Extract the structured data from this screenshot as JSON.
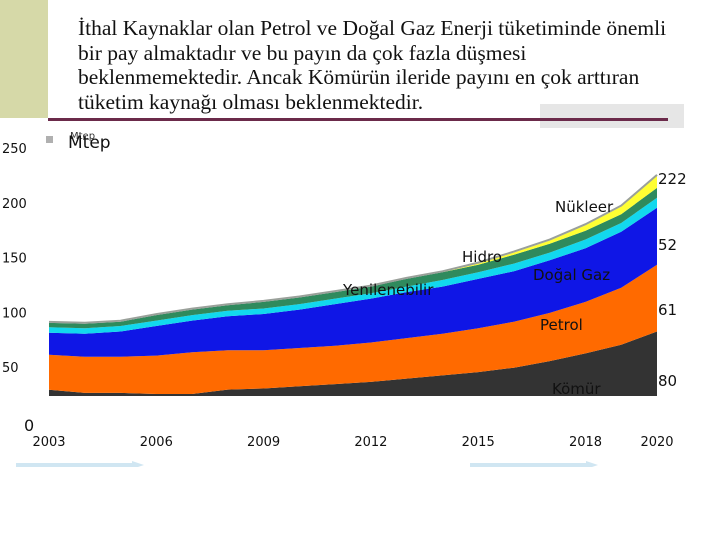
{
  "slide": {
    "title": "İthal Kaynaklar olan Petrol ve Doğal Gaz Enerji tüketiminde önemli bir pay almaktadır ve bu payın da çok fazla düşmesi beklenmemektedir. Ancak Kömürün ileride payını en çok arttıran tüketim kaynağı olması beklenmektedir.",
    "unit_small": "Mtep",
    "unit": "Mtep"
  },
  "colors": {
    "komur": "#333333",
    "petrol": "#ff6a00",
    "dogalgaz": "#0f16e6",
    "yenilenebilir": "#12d8ee",
    "hidro": "#2f8a5d",
    "nukleer": "#ffff33",
    "top_line": "#9aa09a"
  },
  "chart_data": {
    "type": "area",
    "stacked": true,
    "x": [
      2003,
      2004,
      2005,
      2006,
      2007,
      2008,
      2009,
      2010,
      2011,
      2012,
      2013,
      2014,
      2015,
      2016,
      2017,
      2018,
      2019,
      2020
    ],
    "x_ticks": [
      "2003",
      "2006",
      "2009",
      "2012",
      "2015",
      "2018",
      "2020"
    ],
    "y_ticks": [
      "0",
      "50",
      "100",
      "150",
      "200",
      "250"
    ],
    "ylim": [
      0,
      250
    ],
    "xlim": [
      2003,
      2020
    ],
    "grid": false,
    "series": [
      {
        "name": "Kömür",
        "color": "#333333",
        "values": [
          23,
          24,
          24,
          23,
          23,
          27,
          28,
          30,
          32,
          34,
          37,
          40,
          43,
          47,
          53,
          60,
          68,
          80
        ]
      },
      {
        "name": "Petrol",
        "color": "#ff6a00",
        "values": [
          32,
          33,
          33,
          35,
          38,
          36,
          35,
          35,
          35,
          36,
          37,
          38,
          40,
          42,
          44,
          47,
          52,
          61
        ]
      },
      {
        "name": "Doğal Gaz",
        "color": "#0f16e6",
        "values": [
          20,
          21,
          23,
          27,
          29,
          31,
          33,
          35,
          38,
          40,
          42,
          43,
          45,
          46,
          48,
          49,
          51,
          52
        ]
      },
      {
        "name": "Yenilenebilir",
        "color": "#12d8ee",
        "values": [
          5,
          5,
          5,
          5,
          5,
          5,
          5,
          5,
          5,
          5,
          5,
          6,
          6,
          7,
          7,
          8,
          8,
          9
        ]
      },
      {
        "name": "Hidro",
        "color": "#2f8a5d",
        "values": [
          4,
          4,
          4,
          5,
          5,
          5,
          6,
          6,
          6,
          6,
          7,
          7,
          7,
          8,
          8,
          8,
          8,
          9
        ]
      },
      {
        "name": "Nükleer",
        "color": "#ffff33",
        "values": [
          0,
          0,
          0,
          0,
          0,
          0,
          0,
          0,
          0,
          0,
          0,
          0,
          1,
          2,
          3,
          5,
          7,
          11
        ]
      }
    ],
    "labels": {
      "komur": "Kömür",
      "petrol": "Petrol",
      "dogalgaz": "Doğal Gaz",
      "yenilenebilir": "Yenilenebilir",
      "hidro": "Hidro",
      "nukleer": "Nükleer"
    },
    "end_values": {
      "total": "222",
      "dogalgaz": "52",
      "petrol": "61",
      "komur": "80"
    }
  }
}
